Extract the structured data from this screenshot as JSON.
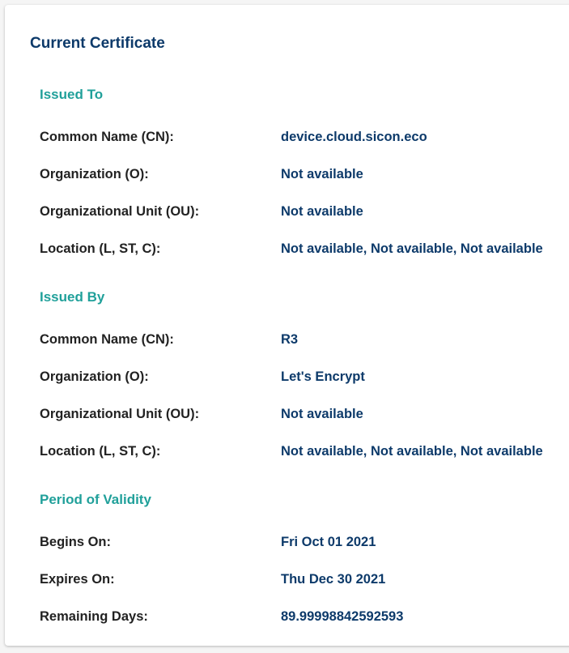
{
  "title": "Current Certificate",
  "sections": [
    {
      "heading": "Issued To",
      "rows": [
        {
          "label": "Common Name (CN):",
          "value": "device.cloud.sicon.eco"
        },
        {
          "label": "Organization (O):",
          "value": "Not available"
        },
        {
          "label": "Organizational Unit (OU):",
          "value": "Not available"
        },
        {
          "label": "Location (L, ST, C):",
          "value": "Not available, Not available, Not available"
        }
      ]
    },
    {
      "heading": "Issued By",
      "rows": [
        {
          "label": "Common Name (CN):",
          "value": "R3"
        },
        {
          "label": "Organization (O):",
          "value": "Let's Encrypt"
        },
        {
          "label": "Organizational Unit (OU):",
          "value": "Not available"
        },
        {
          "label": "Location (L, ST, C):",
          "value": "Not available, Not available, Not available"
        }
      ]
    },
    {
      "heading": "Period of Validity",
      "rows": [
        {
          "label": "Begins On:",
          "value": "Fri Oct 01 2021"
        },
        {
          "label": "Expires On:",
          "value": "Thu Dec 30 2021"
        },
        {
          "label": "Remaining Days:",
          "value": "89.99998842592593"
        }
      ]
    }
  ]
}
